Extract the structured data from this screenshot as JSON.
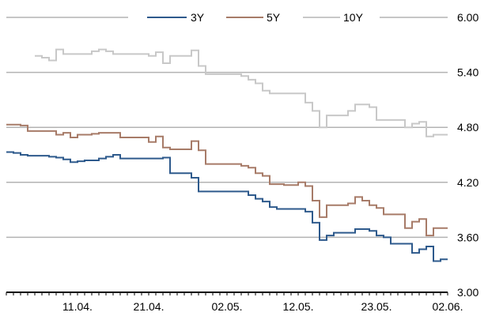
{
  "chart_data": {
    "type": "line",
    "title": "",
    "xlabel": "",
    "ylabel": "",
    "ylim": [
      3.0,
      6.0
    ],
    "y_ticks": [
      "3.00",
      "3.60",
      "4.20",
      "4.80",
      "5.40",
      "6.00"
    ],
    "y_axis_side": "right",
    "grid": true,
    "legend_placement": "top-center",
    "x_range": [
      "2022-04-01",
      "2022-06-02"
    ],
    "x_ticks": [
      {
        "date": "2022-04-11",
        "label": "11.04."
      },
      {
        "date": "2022-04-21",
        "label": "21.04."
      },
      {
        "date": "2022-05-02",
        "label": "02.05."
      },
      {
        "date": "2022-05-12",
        "label": "12.05."
      },
      {
        "date": "2022-05-23",
        "label": "23.05."
      },
      {
        "date": "2022-06-02",
        "label": "02.06."
      }
    ],
    "series": [
      {
        "name": "3Y",
        "color": "#2e5a8c",
        "points": [
          [
            "2022-04-01",
            4.53
          ],
          [
            "2022-04-02",
            4.52
          ],
          [
            "2022-04-03",
            4.5
          ],
          [
            "2022-04-04",
            4.49
          ],
          [
            "2022-04-07",
            4.48
          ],
          [
            "2022-04-08",
            4.47
          ],
          [
            "2022-04-09",
            4.45
          ],
          [
            "2022-04-10",
            4.42
          ],
          [
            "2022-04-11",
            4.43
          ],
          [
            "2022-04-12",
            4.44
          ],
          [
            "2022-04-14",
            4.46
          ],
          [
            "2022-04-15",
            4.48
          ],
          [
            "2022-04-16",
            4.5
          ],
          [
            "2022-04-17",
            4.46
          ],
          [
            "2022-04-23",
            4.47
          ],
          [
            "2022-04-24",
            4.3
          ],
          [
            "2022-04-27",
            4.25
          ],
          [
            "2022-04-28",
            4.1
          ],
          [
            "2022-05-05",
            4.06
          ],
          [
            "2022-05-06",
            4.02
          ],
          [
            "2022-05-07",
            3.99
          ],
          [
            "2022-05-08",
            3.93
          ],
          [
            "2022-05-09",
            3.91
          ],
          [
            "2022-05-13",
            3.88
          ],
          [
            "2022-05-14",
            3.76
          ],
          [
            "2022-05-15",
            3.57
          ],
          [
            "2022-05-16",
            3.62
          ],
          [
            "2022-05-17",
            3.65
          ],
          [
            "2022-05-20",
            3.69
          ],
          [
            "2022-05-22",
            3.67
          ],
          [
            "2022-05-23",
            3.62
          ],
          [
            "2022-05-24",
            3.6
          ],
          [
            "2022-05-25",
            3.53
          ],
          [
            "2022-05-28",
            3.43
          ],
          [
            "2022-05-29",
            3.47
          ],
          [
            "2022-05-30",
            3.5
          ],
          [
            "2022-05-31",
            3.34
          ],
          [
            "2022-06-01",
            3.36
          ],
          [
            "2022-06-02",
            3.36
          ]
        ]
      },
      {
        "name": "5Y",
        "color": "#a77b68",
        "points": [
          [
            "2022-04-01",
            4.83
          ],
          [
            "2022-04-03",
            4.82
          ],
          [
            "2022-04-04",
            4.76
          ],
          [
            "2022-04-08",
            4.72
          ],
          [
            "2022-04-09",
            4.74
          ],
          [
            "2022-04-10",
            4.69
          ],
          [
            "2022-04-11",
            4.72
          ],
          [
            "2022-04-13",
            4.73
          ],
          [
            "2022-04-14",
            4.74
          ],
          [
            "2022-04-17",
            4.69
          ],
          [
            "2022-04-21",
            4.64
          ],
          [
            "2022-04-22",
            4.7
          ],
          [
            "2022-04-23",
            4.58
          ],
          [
            "2022-04-24",
            4.56
          ],
          [
            "2022-04-27",
            4.65
          ],
          [
            "2022-04-28",
            4.55
          ],
          [
            "2022-04-29",
            4.4
          ],
          [
            "2022-05-04",
            4.38
          ],
          [
            "2022-05-05",
            4.36
          ],
          [
            "2022-05-06",
            4.3
          ],
          [
            "2022-05-07",
            4.27
          ],
          [
            "2022-05-08",
            4.18
          ],
          [
            "2022-05-10",
            4.17
          ],
          [
            "2022-05-12",
            4.2
          ],
          [
            "2022-05-13",
            4.16
          ],
          [
            "2022-05-14",
            4.0
          ],
          [
            "2022-05-15",
            3.82
          ],
          [
            "2022-05-16",
            3.95
          ],
          [
            "2022-05-19",
            3.97
          ],
          [
            "2022-05-20",
            4.04
          ],
          [
            "2022-05-21",
            4.0
          ],
          [
            "2022-05-22",
            3.95
          ],
          [
            "2022-05-23",
            3.92
          ],
          [
            "2022-05-24",
            3.85
          ],
          [
            "2022-05-27",
            3.7
          ],
          [
            "2022-05-28",
            3.77
          ],
          [
            "2022-05-29",
            3.8
          ],
          [
            "2022-05-30",
            3.62
          ],
          [
            "2022-05-31",
            3.7
          ],
          [
            "2022-06-02",
            3.7
          ]
        ]
      },
      {
        "name": "10Y",
        "color": "#c8c8c8",
        "points": [
          [
            "2022-04-05",
            5.58
          ],
          [
            "2022-04-06",
            5.56
          ],
          [
            "2022-04-07",
            5.53
          ],
          [
            "2022-04-08",
            5.65
          ],
          [
            "2022-04-09",
            5.6
          ],
          [
            "2022-04-13",
            5.63
          ],
          [
            "2022-04-14",
            5.65
          ],
          [
            "2022-04-15",
            5.63
          ],
          [
            "2022-04-16",
            5.6
          ],
          [
            "2022-04-21",
            5.58
          ],
          [
            "2022-04-22",
            5.62
          ],
          [
            "2022-04-23",
            5.5
          ],
          [
            "2022-04-24",
            5.58
          ],
          [
            "2022-04-27",
            5.64
          ],
          [
            "2022-04-28",
            5.47
          ],
          [
            "2022-04-29",
            5.38
          ],
          [
            "2022-05-04",
            5.36
          ],
          [
            "2022-05-05",
            5.32
          ],
          [
            "2022-05-06",
            5.28
          ],
          [
            "2022-05-07",
            5.2
          ],
          [
            "2022-05-08",
            5.17
          ],
          [
            "2022-05-13",
            5.07
          ],
          [
            "2022-05-14",
            4.98
          ],
          [
            "2022-05-15",
            4.8
          ],
          [
            "2022-05-16",
            4.93
          ],
          [
            "2022-05-19",
            4.98
          ],
          [
            "2022-05-20",
            5.05
          ],
          [
            "2022-05-22",
            5.02
          ],
          [
            "2022-05-23",
            4.88
          ],
          [
            "2022-05-27",
            4.8
          ],
          [
            "2022-05-28",
            4.84
          ],
          [
            "2022-05-29",
            4.86
          ],
          [
            "2022-05-30",
            4.7
          ],
          [
            "2022-05-31",
            4.72
          ],
          [
            "2022-06-02",
            4.72
          ]
        ]
      }
    ]
  }
}
